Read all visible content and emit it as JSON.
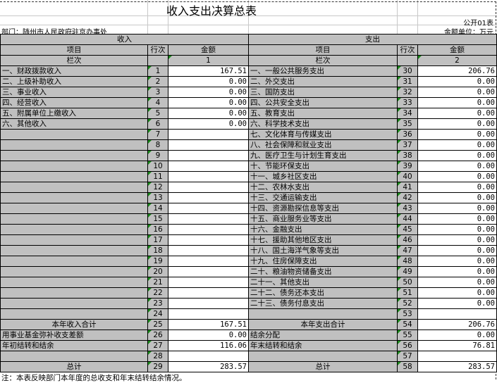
{
  "title": "收入支出决算总表",
  "form_code": "公开01表",
  "department": "部门：随州市人民政府驻京办事处",
  "unit": "金额单位：万元",
  "income_header": "收入",
  "expense_header": "支出",
  "col_item": "项目",
  "col_row": "行次",
  "col_amount": "金额",
  "col_index_label": "栏次",
  "income_col_index": "1",
  "expense_col_index": "2",
  "rows": [
    {
      "in_item": "一、财政拨款收入",
      "in_no": "1",
      "in_amt": "167.51",
      "ex_item": "一、一般公共服务支出",
      "ex_no": "30",
      "ex_amt": "206.76"
    },
    {
      "in_item": "二、上级补助收入",
      "in_no": "2",
      "in_amt": "0.00",
      "ex_item": "二、外交支出",
      "ex_no": "31",
      "ex_amt": "0.00"
    },
    {
      "in_item": "三、事业收入",
      "in_no": "3",
      "in_amt": "0.00",
      "ex_item": "三、国防支出",
      "ex_no": "32",
      "ex_amt": "0.00"
    },
    {
      "in_item": "四、经营收入",
      "in_no": "4",
      "in_amt": "0.00",
      "ex_item": "四、公共安全支出",
      "ex_no": "33",
      "ex_amt": "0.00"
    },
    {
      "in_item": "五、附属单位上缴收入",
      "in_no": "5",
      "in_amt": "0.00",
      "ex_item": "五、教育支出",
      "ex_no": "34",
      "ex_amt": "0.00"
    },
    {
      "in_item": "六、其他收入",
      "in_no": "6",
      "in_amt": "0.00",
      "ex_item": "六、科学技术支出",
      "ex_no": "35",
      "ex_amt": "0.00"
    },
    {
      "in_item": "",
      "in_no": "7",
      "in_amt": "",
      "ex_item": "七、文化体育与传媒支出",
      "ex_no": "36",
      "ex_amt": "0.00"
    },
    {
      "in_item": "",
      "in_no": "8",
      "in_amt": "",
      "ex_item": "八、社会保障和就业支出",
      "ex_no": "37",
      "ex_amt": "0.00"
    },
    {
      "in_item": "",
      "in_no": "9",
      "in_amt": "",
      "ex_item": "九、医疗卫生与计划生育支出",
      "ex_no": "38",
      "ex_amt": "0.00"
    },
    {
      "in_item": "",
      "in_no": "10",
      "in_amt": "",
      "ex_item": "十、节能环保支出",
      "ex_no": "39",
      "ex_amt": "0.00"
    },
    {
      "in_item": "",
      "in_no": "11",
      "in_amt": "",
      "ex_item": "十一、城乡社区支出",
      "ex_no": "40",
      "ex_amt": "0.00"
    },
    {
      "in_item": "",
      "in_no": "12",
      "in_amt": "",
      "ex_item": "十二、农林水支出",
      "ex_no": "41",
      "ex_amt": "0.00"
    },
    {
      "in_item": "",
      "in_no": "13",
      "in_amt": "",
      "ex_item": "十三、交通运输支出",
      "ex_no": "42",
      "ex_amt": "0.00"
    },
    {
      "in_item": "",
      "in_no": "14",
      "in_amt": "",
      "ex_item": "十四、资源勘探信息等支出",
      "ex_no": "43",
      "ex_amt": "0.00"
    },
    {
      "in_item": "",
      "in_no": "15",
      "in_amt": "",
      "ex_item": "十五、商业服务业等支出",
      "ex_no": "44",
      "ex_amt": "0.00"
    },
    {
      "in_item": "",
      "in_no": "16",
      "in_amt": "",
      "ex_item": "十六、金融支出",
      "ex_no": "45",
      "ex_amt": "0.00"
    },
    {
      "in_item": "",
      "in_no": "17",
      "in_amt": "",
      "ex_item": "十七、援助其他地区支出",
      "ex_no": "46",
      "ex_amt": "0.00"
    },
    {
      "in_item": "",
      "in_no": "18",
      "in_amt": "",
      "ex_item": "十八、国土海洋气象等支出",
      "ex_no": "47",
      "ex_amt": "0.00"
    },
    {
      "in_item": "",
      "in_no": "19",
      "in_amt": "",
      "ex_item": "十九、住房保障支出",
      "ex_no": "48",
      "ex_amt": "0.00"
    },
    {
      "in_item": "",
      "in_no": "20",
      "in_amt": "",
      "ex_item": "二十、粮油物资储备支出",
      "ex_no": "49",
      "ex_amt": "0.00"
    },
    {
      "in_item": "",
      "in_no": "21",
      "in_amt": "",
      "ex_item": "二十一、其他支出",
      "ex_no": "50",
      "ex_amt": "0.00"
    },
    {
      "in_item": "",
      "in_no": "22",
      "in_amt": "",
      "ex_item": "二十二、债务还本支出",
      "ex_no": "51",
      "ex_amt": "0.00"
    },
    {
      "in_item": "",
      "in_no": "23",
      "in_amt": "",
      "ex_item": "二十三、债务付息支出",
      "ex_no": "52",
      "ex_amt": "0.00"
    },
    {
      "in_item": "",
      "in_no": "24",
      "in_amt": "",
      "ex_item": "",
      "ex_no": "53",
      "ex_amt": ""
    },
    {
      "in_item": "本年收入合计",
      "in_no": "25",
      "in_amt": "167.51",
      "ex_item": "本年支出合计",
      "ex_no": "54",
      "ex_amt": "206.76",
      "center": true
    },
    {
      "in_item": "用事业基金弥补收支差额",
      "in_no": "26",
      "in_amt": "0.00",
      "ex_item": "结余分配",
      "ex_no": "55",
      "ex_amt": "0.00"
    },
    {
      "in_item": "年初结转和结余",
      "in_no": "27",
      "in_amt": "116.06",
      "ex_item": "年末结转和结余",
      "ex_no": "56",
      "ex_amt": "76.81"
    },
    {
      "in_item": "",
      "in_no": "28",
      "in_amt": "",
      "ex_item": "",
      "ex_no": "57",
      "ex_amt": ""
    },
    {
      "in_item": "总计",
      "in_no": "29",
      "in_amt": "283.57",
      "ex_item": "总计",
      "ex_no": "58",
      "ex_amt": "283.57",
      "center": true
    }
  ],
  "note": "注：本表反映部门本年度的总收支和年末结转结余情况。"
}
